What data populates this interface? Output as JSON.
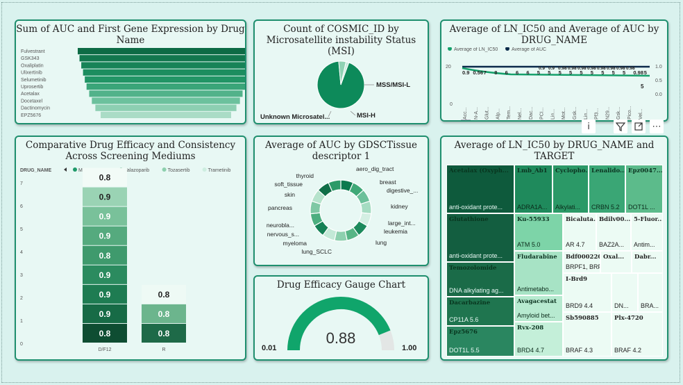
{
  "toolbar": {
    "info_icon": "info-icon",
    "filter_icon": "filter-icon",
    "focus_icon": "focus-mode-icon",
    "more_icon": "more-options-icon"
  },
  "cards": {
    "funnel_title": "Sum of AUC and First Gene Expression by Drug Name",
    "msi_title": "Count of COSMIC_ID by Microsatellite instability Status (MSI)",
    "line_title": "Average of LN_IC50 and Average of AUC by DRUG_NAME",
    "bar_title": "Comparative Drug Efficacy and Consistency Across Screening Mediums",
    "donut_title": "Average of AUC by GDSCTissue descriptor 1",
    "gauge_title": "Drug Efficacy Gauge Chart",
    "treemap_title": "Average of LN_IC50 by DRUG_NAME and TARGET"
  },
  "funnel": {
    "drugs": [
      "Fulvestrant",
      "GSK343",
      "Oxaliplatin",
      "Ulixertinib",
      "Selumetinib",
      "Uprosertib",
      "Acetalax",
      "Docetaxel",
      "Dactinomycin",
      "EPZ5676"
    ],
    "relative_values": [
      1.0,
      0.98,
      0.96,
      0.94,
      0.92,
      0.9,
      0.87,
      0.84,
      0.8,
      0.74
    ],
    "colors": [
      "#0d6b45",
      "#12774e",
      "#178357",
      "#1c8d5f",
      "#229566",
      "#3aa579",
      "#52b28a",
      "#6cc19d",
      "#8dcfb2",
      "#aadcc6"
    ]
  },
  "msi": {
    "type": "pie",
    "slices": [
      {
        "label": "MSS/MSI-L",
        "value": 0.93,
        "color": "#0d8a5a"
      },
      {
        "label": "MSI-H",
        "value": 0.05,
        "color": "#8fd2b4"
      },
      {
        "label": "Unknown Microsatel...",
        "value": 0.02,
        "color": "#c9ece0"
      }
    ]
  },
  "line": {
    "legend": [
      {
        "label": "Average of LN_IC50",
        "color": "#15a06b"
      },
      {
        "label": "Average of AUC",
        "color": "#0b2a4a"
      }
    ],
    "y_left_ticks": [
      "20",
      "0"
    ],
    "y_right_ticks": [
      "1.0",
      "0.5",
      "0.0"
    ],
    "categories": [
      "Acc...",
      "N-A...",
      "Glut...",
      "Alp...",
      "Tem...",
      "Nel...",
      "Dac...",
      "PCI...",
      "Lin...",
      "Mot...",
      "Gsk...",
      "Lin...",
      "Pf3...",
      "N29...",
      "Gsk...",
      "Pico...",
      "Vel..."
    ],
    "data_labels": [
      "0.9",
      "0.56",
      "7",
      "8",
      "6",
      "6",
      "6",
      "5",
      "5",
      "5",
      "5",
      "5",
      "5",
      "5",
      "5",
      "5",
      "0.98",
      "5"
    ],
    "top_labels": [
      "0.9",
      "0.9",
      "0.98",
      "0.98",
      "0.98",
      "0.98",
      "0.98",
      "0.98",
      "0.98",
      "0.98"
    ]
  },
  "bars": {
    "legend_title": "DRUG_NAME",
    "legend": [
      {
        "label": "Mitoxantrone",
        "color": "#1f9a6a"
      },
      {
        "label": "Talazoparib",
        "color": "#5ab888"
      },
      {
        "label": "Tozasertib",
        "color": "#8dd0ae"
      },
      {
        "label": "Trametinib",
        "color": "#cdeee0"
      }
    ],
    "y_ticks": [
      "7",
      "6",
      "5",
      "4",
      "3",
      "2",
      "1",
      "0"
    ],
    "categories": [
      "D/F12",
      "R"
    ],
    "col1": [
      {
        "label": "0.8",
        "color": "#0e4d32",
        "tcolor": "#fff"
      },
      {
        "label": "0.9",
        "color": "#176b46",
        "tcolor": "#fff"
      },
      {
        "label": "0.9",
        "color": "#1e7c52",
        "tcolor": "#fff"
      },
      {
        "label": "0.9",
        "color": "#2b8b5f",
        "tcolor": "#fff"
      },
      {
        "label": "0.8",
        "color": "#3f9a6d",
        "tcolor": "#fff"
      },
      {
        "label": "0.9",
        "color": "#55aa7e",
        "tcolor": "#fff"
      },
      {
        "label": "0.9",
        "color": "#79c19a",
        "tcolor": "#fff"
      },
      {
        "label": "0.9",
        "color": "#9ad3b4",
        "tcolor": "#222"
      },
      {
        "label": "0.8",
        "color": "#f2fbf7",
        "tcolor": "#222"
      }
    ],
    "col2": [
      {
        "label": "0.8",
        "color": "#1e6a48",
        "tcolor": "#fff"
      },
      {
        "label": "0.8",
        "color": "#6cb58d",
        "tcolor": "#fff"
      },
      {
        "label": "0.8",
        "color": "#eefaf5",
        "tcolor": "#222"
      }
    ]
  },
  "donut": {
    "labels_left": [
      "thyroid",
      "soft_tissue",
      "skin",
      "pancreas",
      "neurobla...",
      "nervous_s...",
      "myeloma",
      "lung_SCLC"
    ],
    "labels_right": [
      "aero_dig_tract",
      "breast",
      "digestive_...",
      "kidney",
      "large_int...",
      "leukemia",
      "lung"
    ]
  },
  "gauge": {
    "min_label": "0.01",
    "max_label": "1.00",
    "value_label": "0.88",
    "value": 0.88,
    "min": 0.01,
    "max": 1.0
  },
  "treemap": {
    "cells": [
      {
        "name": "Acetalax (Oxyph...",
        "target": "anti-oxidant prote...",
        "bg": "#0e5a3c",
        "fg": "#08361f",
        "tfg": "#e8f8f4"
      },
      {
        "name": "Lmb_Ab1",
        "target": "ADRA1A...",
        "bg": "#1f8a5c",
        "fg": "#0b3320",
        "tfg": "#0b2a1a"
      },
      {
        "name": "Cyclopho...",
        "target": "Alkylati...",
        "bg": "#2b9967",
        "fg": "#0b3320",
        "tfg": "#0b2a1a"
      },
      {
        "name": "Lenalido...",
        "target": "CRBN 5.2",
        "bg": "#3aa675",
        "fg": "#0b3320",
        "tfg": "#0b2a1a"
      },
      {
        "name": "Epz0047...",
        "target": "DOT1L ...",
        "bg": "#5cbb8b",
        "fg": "#0b3320",
        "tfg": "#0b2a1a"
      },
      {
        "name": "Glutathione",
        "target": "anti-oxidant prote...",
        "bg": "#135e40",
        "fg": "#08361f",
        "tfg": "#e8f8f4"
      },
      {
        "name": "Ku-55933",
        "target": "ATM 5.0",
        "bg": "#7dd4a8",
        "fg": "#0b3320",
        "tfg": "#0b2a1a"
      },
      {
        "name": "Bicaluta...",
        "target": "AR 4.7",
        "bg": "#ecfbf4",
        "fg": "#222",
        "tfg": "#222"
      },
      {
        "name": "Bdilv00...",
        "target": "BAZ2A...",
        "bg": "#ecfbf4",
        "fg": "#222",
        "tfg": "#222"
      },
      {
        "name": "5-Fluor...",
        "target": "Antim...",
        "bg": "#ecfbf4",
        "fg": "#222",
        "tfg": "#222"
      },
      {
        "name": "Temozolomide",
        "target": "DNA alkylating ag...",
        "bg": "#1a6b48",
        "fg": "#08361f",
        "tfg": "#e8f8f4"
      },
      {
        "name": "Fludarabine",
        "target": "Antimetabo...",
        "bg": "#a7e3c5",
        "fg": "#0b3320",
        "tfg": "#0b2a1a"
      },
      {
        "name": "Bdf00022089A",
        "target": "BRPF1, BRPF...",
        "bg": "#ecfbf4",
        "fg": "#222",
        "tfg": "#222"
      },
      {
        "name": "Oxal...",
        "target": "",
        "bg": "#ecfbf4",
        "fg": "#222",
        "tfg": "#222"
      },
      {
        "name": "Dabr...",
        "target": "",
        "bg": "#ecfbf4",
        "fg": "#222",
        "tfg": "#222"
      },
      {
        "name": "Dacarbazine",
        "target": "CP11A 5.6",
        "bg": "#1f754f",
        "fg": "#08361f",
        "tfg": "#e8f8f4"
      },
      {
        "name": "Avagacestat",
        "target": "Amyloid bet...",
        "bg": "#b7ead0",
        "fg": "#0b3320",
        "tfg": "#0b2a1a"
      },
      {
        "name": "I-Brd9",
        "target": "BRD9 4.4",
        "bg": "#ecfbf4",
        "fg": "#222",
        "tfg": "#222"
      },
      {
        "name": "",
        "target": "DN...",
        "bg": "#ecfbf4",
        "fg": "#222",
        "tfg": "#222"
      },
      {
        "name": "",
        "target": "BRA...",
        "bg": "#ecfbf4",
        "fg": "#222",
        "tfg": "#222"
      },
      {
        "name": "Epz5676",
        "target": "DOT1L 5.5",
        "bg": "#2a8660",
        "fg": "#08361f",
        "tfg": "#e8f8f4"
      },
      {
        "name": "Rvx-208",
        "target": "BRD4 4.7",
        "bg": "#c4efd9",
        "fg": "#0b3320",
        "tfg": "#0b2a1a"
      },
      {
        "name": "Sb590885",
        "target": "BRAF 4.3",
        "bg": "#ecfbf4",
        "fg": "#222",
        "tfg": "#222"
      },
      {
        "name": "Plx-4720",
        "target": "BRAF 4.2",
        "bg": "#ecfbf4",
        "fg": "#222",
        "tfg": "#222"
      }
    ]
  }
}
